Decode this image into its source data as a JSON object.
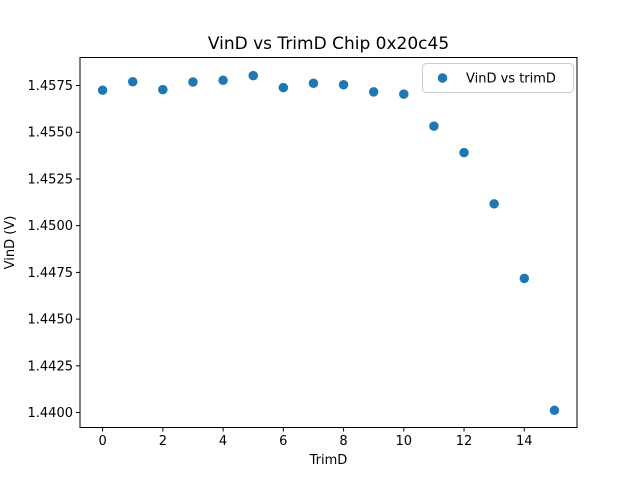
{
  "figure": {
    "background": "#ffffff",
    "text_color": "#000000",
    "spine_color": "#000000",
    "legend_border_color": "#cccccc"
  },
  "chart_data": {
    "type": "scatter",
    "title": "VinD vs TrimD Chip 0x20c45",
    "xlabel": "TrimD",
    "ylabel": "VinD (V)",
    "x": [
      0,
      1,
      2,
      3,
      4,
      5,
      6,
      7,
      8,
      9,
      10,
      11,
      12,
      13,
      14,
      15
    ],
    "series": [
      {
        "name": "VinD vs trimD",
        "color": "#1f77b4",
        "marker": "circle",
        "values": [
          1.45725,
          1.4577,
          1.45728,
          1.45769,
          1.45778,
          1.45803,
          1.45739,
          1.45762,
          1.45754,
          1.45716,
          1.45704,
          1.45533,
          1.45391,
          1.45117,
          1.44718,
          1.44012
        ]
      }
    ],
    "xlim": [
      -0.75,
      15.75
    ],
    "ylim": [
      1.4392,
      1.459
    ],
    "xticks": [
      0,
      2,
      4,
      6,
      8,
      10,
      12,
      14
    ],
    "xtick_labels": [
      "0",
      "2",
      "4",
      "6",
      "8",
      "10",
      "12",
      "14"
    ],
    "yticks": [
      1.44,
      1.4425,
      1.445,
      1.4475,
      1.45,
      1.4525,
      1.455,
      1.4575
    ],
    "ytick_labels": [
      "1.4400",
      "1.4425",
      "1.4450",
      "1.4475",
      "1.4500",
      "1.4525",
      "1.4550",
      "1.4575"
    ],
    "grid": false,
    "legend_position": "upper right",
    "marker_diameter_px": 9.5
  }
}
